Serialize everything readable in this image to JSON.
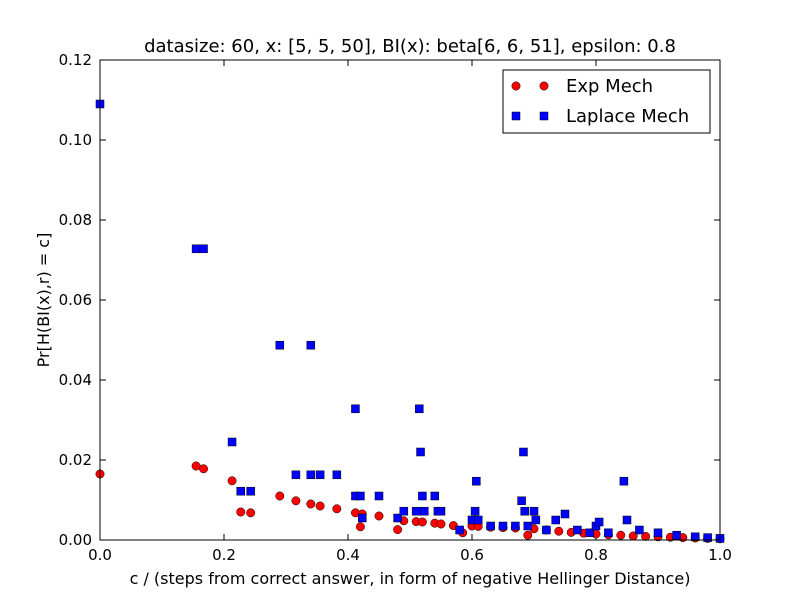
{
  "chart_data": {
    "type": "scatter",
    "title": "datasize: 60, x: [5, 5, 50], BI(x): beta[6, 6, 51], epsilon: 0.8",
    "xlabel": "c / (steps from correct answer, in form of negative Hellinger Distance)",
    "ylabel": "Pr[H(BI(x),r) = c]",
    "xlim": [
      0.0,
      1.0
    ],
    "ylim": [
      0.0,
      0.12
    ],
    "xticks": [
      "0.0",
      "0.2",
      "0.4",
      "0.6",
      "0.8",
      "1.0"
    ],
    "yticks": [
      "0.00",
      "0.02",
      "0.04",
      "0.06",
      "0.08",
      "0.10",
      "0.12"
    ],
    "legend_position": "top-right",
    "grid": false,
    "series": [
      {
        "name": "Exp Mech",
        "marker": "circle",
        "color": "#ff0000",
        "x": [
          0.0,
          0.155,
          0.167,
          0.213,
          0.227,
          0.243,
          0.29,
          0.316,
          0.34,
          0.355,
          0.382,
          0.412,
          0.42,
          0.423,
          0.45,
          0.48,
          0.49,
          0.51,
          0.52,
          0.54,
          0.55,
          0.57,
          0.585,
          0.6,
          0.61,
          0.63,
          0.65,
          0.67,
          0.69,
          0.7,
          0.72,
          0.74,
          0.76,
          0.78,
          0.8,
          0.82,
          0.84,
          0.86,
          0.88,
          0.9,
          0.92,
          0.94,
          0.96,
          0.98,
          1.0
        ],
        "y": [
          0.0165,
          0.0185,
          0.0178,
          0.0148,
          0.007,
          0.0068,
          0.011,
          0.0098,
          0.009,
          0.0085,
          0.0078,
          0.0068,
          0.0033,
          0.0065,
          0.006,
          0.0026,
          0.0048,
          0.0046,
          0.0045,
          0.0042,
          0.004,
          0.0036,
          0.0018,
          0.0035,
          0.0034,
          0.0032,
          0.0031,
          0.003,
          0.0012,
          0.0028,
          0.0025,
          0.0022,
          0.0019,
          0.0017,
          0.0015,
          0.0013,
          0.0012,
          0.001,
          0.0009,
          0.0008,
          0.0007,
          0.0006,
          0.0005,
          0.0004,
          0.0003
        ]
      },
      {
        "name": "Laplace Mech",
        "marker": "square",
        "color": "#0000ff",
        "x": [
          0.0,
          0.155,
          0.167,
          0.213,
          0.227,
          0.243,
          0.29,
          0.316,
          0.34,
          0.34,
          0.355,
          0.382,
          0.412,
          0.412,
          0.42,
          0.423,
          0.45,
          0.48,
          0.49,
          0.51,
          0.515,
          0.517,
          0.52,
          0.523,
          0.54,
          0.545,
          0.55,
          0.58,
          0.6,
          0.605,
          0.607,
          0.61,
          0.63,
          0.65,
          0.67,
          0.68,
          0.683,
          0.685,
          0.69,
          0.7,
          0.703,
          0.72,
          0.735,
          0.75,
          0.77,
          0.79,
          0.8,
          0.805,
          0.82,
          0.845,
          0.85,
          0.87,
          0.9,
          0.93,
          0.96,
          0.98,
          1.0
        ],
        "y": [
          0.109,
          0.0728,
          0.0728,
          0.0245,
          0.0122,
          0.0122,
          0.0487,
          0.0163,
          0.0487,
          0.0163,
          0.0163,
          0.0163,
          0.0328,
          0.011,
          0.011,
          0.0055,
          0.011,
          0.0055,
          0.0072,
          0.0072,
          0.0328,
          0.022,
          0.011,
          0.0072,
          0.011,
          0.0072,
          0.0072,
          0.0025,
          0.005,
          0.0072,
          0.0147,
          0.005,
          0.0035,
          0.0035,
          0.0035,
          0.0098,
          0.022,
          0.0072,
          0.0035,
          0.0072,
          0.005,
          0.0025,
          0.005,
          0.0065,
          0.0025,
          0.0018,
          0.0035,
          0.0045,
          0.0018,
          0.0147,
          0.005,
          0.0025,
          0.0018,
          0.0012,
          0.0008,
          0.0006,
          0.0004
        ]
      }
    ]
  }
}
